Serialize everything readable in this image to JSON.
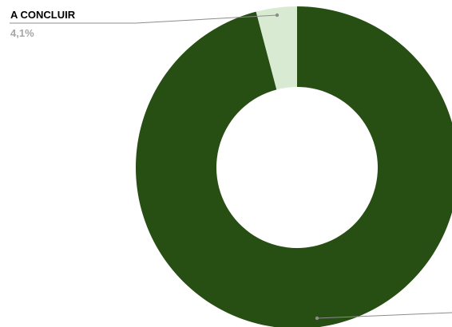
{
  "chart_data": {
    "type": "pie",
    "variant": "donut",
    "slices": [
      {
        "label": "A CONCLUIR",
        "value": 4.1,
        "value_label": "4,1%",
        "color": "#d9ead3"
      },
      {
        "value": 95.9,
        "color": "#274e13"
      }
    ],
    "legend": "none"
  }
}
